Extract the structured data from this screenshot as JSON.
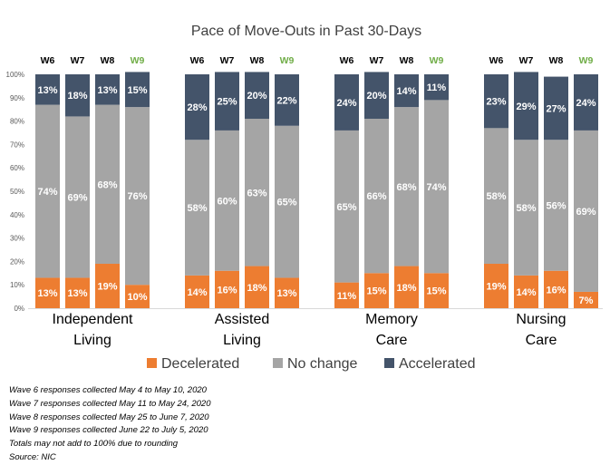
{
  "chart_data": {
    "type": "bar",
    "stacked": true,
    "percent": true,
    "title": "Pace of Move-Outs in Past 30-Days",
    "yticks": [
      "0%",
      "10%",
      "20%",
      "30%",
      "40%",
      "50%",
      "60%",
      "70%",
      "80%",
      "90%",
      "100%"
    ],
    "ylim": [
      0,
      100
    ],
    "grid": false,
    "legend_position": "bottom",
    "groups": [
      {
        "name": "Independent Living",
        "lines": [
          "Independent",
          "Living"
        ],
        "bars": [
          {
            "wave": "W6",
            "decelerated": 13,
            "no_change": 74,
            "accelerated": 13
          },
          {
            "wave": "W7",
            "decelerated": 13,
            "no_change": 69,
            "accelerated": 18
          },
          {
            "wave": "W8",
            "decelerated": 19,
            "no_change": 68,
            "accelerated": 13
          },
          {
            "wave": "W9",
            "decelerated": 10,
            "no_change": 76,
            "accelerated": 15
          }
        ]
      },
      {
        "name": "Assisted Living",
        "lines": [
          "Assisted",
          "Living"
        ],
        "bars": [
          {
            "wave": "W6",
            "decelerated": 14,
            "no_change": 58,
            "accelerated": 28
          },
          {
            "wave": "W7",
            "decelerated": 16,
            "no_change": 60,
            "accelerated": 25
          },
          {
            "wave": "W8",
            "decelerated": 18,
            "no_change": 63,
            "accelerated": 20
          },
          {
            "wave": "W9",
            "decelerated": 13,
            "no_change": 65,
            "accelerated": 22
          }
        ]
      },
      {
        "name": "Memory Care",
        "lines": [
          "Memory",
          "Care"
        ],
        "bars": [
          {
            "wave": "W6",
            "decelerated": 11,
            "no_change": 65,
            "accelerated": 24
          },
          {
            "wave": "W7",
            "decelerated": 15,
            "no_change": 66,
            "accelerated": 20
          },
          {
            "wave": "W8",
            "decelerated": 18,
            "no_change": 68,
            "accelerated": 14
          },
          {
            "wave": "W9",
            "decelerated": 15,
            "no_change": 74,
            "accelerated": 11
          }
        ]
      },
      {
        "name": "Nursing Care",
        "lines": [
          "Nursing",
          "Care"
        ],
        "bars": [
          {
            "wave": "W6",
            "decelerated": 19,
            "no_change": 58,
            "accelerated": 23
          },
          {
            "wave": "W7",
            "decelerated": 14,
            "no_change": 58,
            "accelerated": 29
          },
          {
            "wave": "W8",
            "decelerated": 16,
            "no_change": 56,
            "accelerated": 27
          },
          {
            "wave": "W9",
            "decelerated": 7,
            "no_change": 69,
            "accelerated": 24
          }
        ]
      }
    ],
    "series": [
      {
        "key": "decelerated",
        "name": "Decelerated",
        "color": "#ED7D31"
      },
      {
        "key": "no_change",
        "name": "No change",
        "color": "#A5A5A5"
      },
      {
        "key": "accelerated",
        "name": "Accelerated",
        "color": "#44546A"
      }
    ],
    "highlight_wave": "W9",
    "highlight_color": "#70AD47"
  },
  "notes": [
    "Wave 6 responses collected May 4 to May 10, 2020",
    "Wave 7 responses collected May 11 to May 24, 2020",
    "Wave 8 responses collected May 25 to June 7, 2020",
    "Wave 9 responses collected June 22 to July 5, 2020",
    "Totals may not add to 100% due to rounding",
    "Source: NIC"
  ]
}
